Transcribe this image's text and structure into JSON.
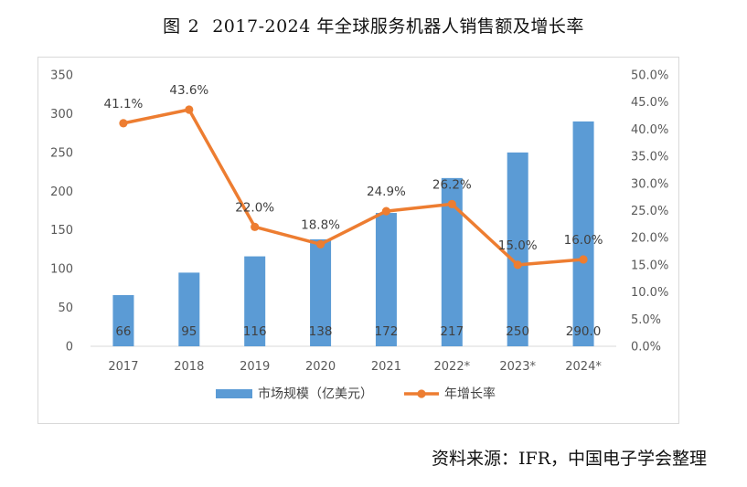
{
  "figure": {
    "label": "图",
    "number": "2",
    "title": "2017-2024 年全球服务机器人销售额及增长率"
  },
  "source_note": "资料来源：IFR，中国电子学会整理",
  "chart_data": {
    "type": "bar+line",
    "categories": [
      "2017",
      "2018",
      "2019",
      "2020",
      "2021",
      "2022*",
      "2023*",
      "2024*"
    ],
    "series": [
      {
        "name": "市场规模（亿美元）",
        "kind": "bar",
        "axis": "left",
        "color": "#5B9BD5",
        "values": [
          66,
          95,
          116,
          138,
          172,
          217,
          250,
          290.0
        ],
        "labels": [
          "66",
          "95",
          "116",
          "138",
          "172",
          "217",
          "250",
          "290.0"
        ]
      },
      {
        "name": "年增长率",
        "kind": "line",
        "axis": "right",
        "color": "#ED7D31",
        "values": [
          41.1,
          43.6,
          22.0,
          18.8,
          24.9,
          26.2,
          15.0,
          16.0
        ],
        "labels": [
          "41.1%",
          "43.6%",
          "22.0%",
          "18.8%",
          "24.9%",
          "26.2%",
          "15.0%",
          "16.0%"
        ]
      }
    ],
    "left_axis": {
      "range": [
        0,
        350
      ],
      "ticks": [
        "0",
        "50",
        "100",
        "150",
        "200",
        "250",
        "300",
        "350"
      ]
    },
    "right_axis": {
      "range": [
        0,
        50
      ],
      "ticks": [
        "0.0%",
        "5.0%",
        "10.0%",
        "15.0%",
        "20.0%",
        "25.0%",
        "30.0%",
        "35.0%",
        "40.0%",
        "45.0%",
        "50.0%"
      ]
    },
    "grid": false,
    "legend_position": "bottom"
  }
}
